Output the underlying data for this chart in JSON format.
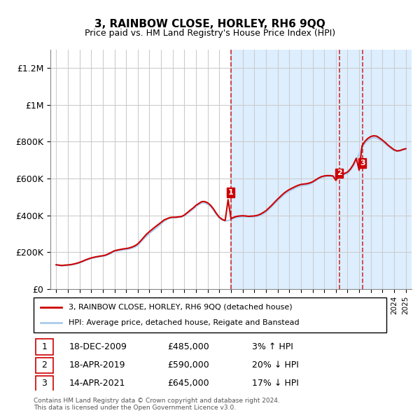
{
  "title": "3, RAINBOW CLOSE, HORLEY, RH6 9QQ",
  "subtitle": "Price paid vs. HM Land Registry's House Price Index (HPI)",
  "ylabel_ticks": [
    0,
    200000,
    400000,
    600000,
    800000,
    1000000,
    1200000
  ],
  "ylabel_labels": [
    "£0",
    "£200K",
    "£400K",
    "£600K",
    "£800K",
    "£1M",
    "£1.2M"
  ],
  "xlim": [
    1994.5,
    2025.5
  ],
  "ylim": [
    0,
    1300000
  ],
  "shade_start": 2009.95,
  "shade_end": 2025.5,
  "transactions": [
    {
      "num": 1,
      "date": "18-DEC-2009",
      "price": 485000,
      "pct": "3%",
      "dir": "↑",
      "year": 2009.97
    },
    {
      "num": 2,
      "date": "18-APR-2019",
      "price": 590000,
      "pct": "20%",
      "dir": "↓",
      "year": 2019.29
    },
    {
      "num": 3,
      "date": "14-APR-2021",
      "price": 645000,
      "pct": "17%",
      "dir": "↓",
      "year": 2021.29
    }
  ],
  "legend_line1": "3, RAINBOW CLOSE, HORLEY, RH6 9QQ (detached house)",
  "legend_line2": "HPI: Average price, detached house, Reigate and Banstead",
  "footnote": "Contains HM Land Registry data © Crown copyright and database right 2024.\nThis data is licensed under the Open Government Licence v3.0.",
  "red_line_color": "#cc0000",
  "blue_line_color": "#aaccee",
  "shade_color": "#ddeeff",
  "grid_color": "#cccccc",
  "hpi_data_x": [
    1995.0,
    1995.25,
    1995.5,
    1995.75,
    1996.0,
    1996.25,
    1996.5,
    1996.75,
    1997.0,
    1997.25,
    1997.5,
    1997.75,
    1998.0,
    1998.25,
    1998.5,
    1998.75,
    1999.0,
    1999.25,
    1999.5,
    1999.75,
    2000.0,
    2000.25,
    2000.5,
    2000.75,
    2001.0,
    2001.25,
    2001.5,
    2001.75,
    2002.0,
    2002.25,
    2002.5,
    2002.75,
    2003.0,
    2003.25,
    2003.5,
    2003.75,
    2004.0,
    2004.25,
    2004.5,
    2004.75,
    2005.0,
    2005.25,
    2005.5,
    2005.75,
    2006.0,
    2006.25,
    2006.5,
    2006.75,
    2007.0,
    2007.25,
    2007.5,
    2007.75,
    2008.0,
    2008.25,
    2008.5,
    2008.75,
    2009.0,
    2009.25,
    2009.5,
    2009.75,
    2010.0,
    2010.25,
    2010.5,
    2010.75,
    2011.0,
    2011.25,
    2011.5,
    2011.75,
    2012.0,
    2012.25,
    2012.5,
    2012.75,
    2013.0,
    2013.25,
    2013.5,
    2013.75,
    2014.0,
    2014.25,
    2014.5,
    2014.75,
    2015.0,
    2015.25,
    2015.5,
    2015.75,
    2016.0,
    2016.25,
    2016.5,
    2016.75,
    2017.0,
    2017.25,
    2017.5,
    2017.75,
    2018.0,
    2018.25,
    2018.5,
    2018.75,
    2019.0,
    2019.25,
    2019.5,
    2019.75,
    2020.0,
    2020.25,
    2020.5,
    2020.75,
    2021.0,
    2021.25,
    2021.5,
    2021.75,
    2022.0,
    2022.25,
    2022.5,
    2022.75,
    2023.0,
    2023.25,
    2023.5,
    2023.75,
    2024.0,
    2024.25,
    2024.5,
    2024.75,
    2025.0
  ],
  "hpi_data_y": [
    130000,
    128000,
    127000,
    128000,
    129000,
    131000,
    134000,
    137000,
    142000,
    148000,
    155000,
    161000,
    166000,
    170000,
    173000,
    176000,
    178000,
    182000,
    188000,
    196000,
    204000,
    208000,
    210000,
    213000,
    215000,
    218000,
    222000,
    228000,
    238000,
    255000,
    272000,
    288000,
    302000,
    315000,
    327000,
    340000,
    355000,
    368000,
    378000,
    385000,
    388000,
    388000,
    390000,
    392000,
    398000,
    410000,
    422000,
    435000,
    448000,
    460000,
    468000,
    468000,
    460000,
    448000,
    428000,
    405000,
    385000,
    375000,
    370000,
    372000,
    378000,
    385000,
    390000,
    392000,
    393000,
    393000,
    392000,
    392000,
    393000,
    395000,
    400000,
    408000,
    418000,
    432000,
    448000,
    465000,
    480000,
    495000,
    510000,
    522000,
    532000,
    540000,
    548000,
    555000,
    560000,
    563000,
    565000,
    570000,
    578000,
    588000,
    598000,
    605000,
    610000,
    612000,
    612000,
    610000,
    608000,
    610000,
    615000,
    622000,
    628000,
    645000,
    668000,
    698000,
    735000,
    768000,
    792000,
    808000,
    818000,
    822000,
    820000,
    812000,
    800000,
    788000,
    775000,
    762000,
    752000,
    748000,
    750000,
    755000,
    760000
  ],
  "price_data_x": [
    1995.0,
    1995.25,
    1995.5,
    1995.75,
    1996.0,
    1996.25,
    1996.5,
    1996.75,
    1997.0,
    1997.25,
    1997.5,
    1997.75,
    1998.0,
    1998.25,
    1998.5,
    1998.75,
    1999.0,
    1999.25,
    1999.5,
    1999.75,
    2000.0,
    2000.25,
    2000.5,
    2000.75,
    2001.0,
    2001.25,
    2001.5,
    2001.75,
    2002.0,
    2002.25,
    2002.5,
    2002.75,
    2003.0,
    2003.25,
    2003.5,
    2003.75,
    2004.0,
    2004.25,
    2004.5,
    2004.75,
    2005.0,
    2005.25,
    2005.5,
    2005.75,
    2006.0,
    2006.25,
    2006.5,
    2006.75,
    2007.0,
    2007.25,
    2007.5,
    2007.75,
    2008.0,
    2008.25,
    2008.5,
    2008.75,
    2009.0,
    2009.25,
    2009.5,
    2009.75,
    2010.0,
    2010.25,
    2010.5,
    2010.75,
    2011.0,
    2011.25,
    2011.5,
    2011.75,
    2012.0,
    2012.25,
    2012.5,
    2012.75,
    2013.0,
    2013.25,
    2013.5,
    2013.75,
    2014.0,
    2014.25,
    2014.5,
    2014.75,
    2015.0,
    2015.25,
    2015.5,
    2015.75,
    2016.0,
    2016.25,
    2016.5,
    2016.75,
    2017.0,
    2017.25,
    2017.5,
    2017.75,
    2018.0,
    2018.25,
    2018.5,
    2018.75,
    2019.0,
    2019.25,
    2019.5,
    2019.75,
    2020.0,
    2020.25,
    2020.5,
    2020.75,
    2021.0,
    2021.25,
    2021.5,
    2021.75,
    2022.0,
    2022.25,
    2022.5,
    2022.75,
    2023.0,
    2023.25,
    2023.5,
    2023.75,
    2024.0,
    2024.25,
    2024.5,
    2024.75,
    2025.0
  ],
  "price_data_y": [
    132000,
    130000,
    128000,
    130000,
    131000,
    133000,
    136000,
    140000,
    145000,
    151000,
    158000,
    164000,
    169000,
    173000,
    176000,
    179000,
    181000,
    185000,
    192000,
    200000,
    208000,
    212000,
    215000,
    218000,
    220000,
    223000,
    228000,
    235000,
    245000,
    262000,
    280000,
    298000,
    312000,
    325000,
    338000,
    350000,
    362000,
    375000,
    382000,
    388000,
    390000,
    390000,
    392000,
    394000,
    402000,
    415000,
    428000,
    440000,
    455000,
    465000,
    475000,
    475000,
    468000,
    455000,
    435000,
    410000,
    390000,
    378000,
    372000,
    485000,
    382000,
    390000,
    395000,
    397000,
    398000,
    397000,
    395000,
    396000,
    397000,
    400000,
    406000,
    415000,
    425000,
    440000,
    455000,
    472000,
    488000,
    503000,
    518000,
    530000,
    540000,
    548000,
    556000,
    563000,
    568000,
    570000,
    572000,
    576000,
    582000,
    592000,
    602000,
    610000,
    614000,
    616000,
    616000,
    614000,
    590000,
    614000,
    620000,
    628000,
    635000,
    652000,
    676000,
    710000,
    645000,
    778000,
    802000,
    818000,
    828000,
    832000,
    830000,
    820000,
    808000,
    795000,
    780000,
    768000,
    756000,
    750000,
    752000,
    758000,
    762000
  ]
}
